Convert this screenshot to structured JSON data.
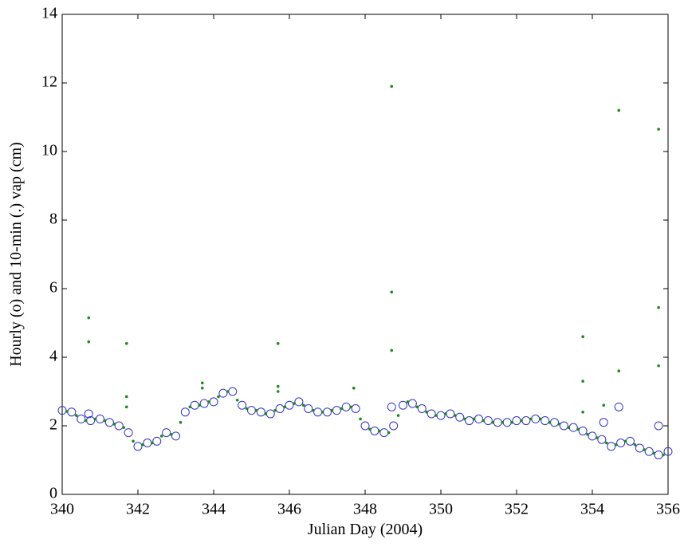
{
  "chart_data": {
    "type": "scatter",
    "x_label": "Julian Day (2004)",
    "y_label": "Hourly (o) and 10-min (.) vap (cm)",
    "xlim": [
      340,
      356
    ],
    "xticks": [
      340,
      342,
      344,
      346,
      348,
      350,
      352,
      354,
      356
    ],
    "ylim": [
      0,
      14
    ],
    "yticks": [
      0,
      2,
      4,
      6,
      8,
      10,
      12,
      14
    ],
    "grid": false,
    "series": [
      {
        "name": "Hourly",
        "color": "#3333cc",
        "marker": "circle",
        "x": [
          340,
          340.25,
          340.5,
          340.75,
          341,
          341.25,
          341.5,
          341.75,
          342,
          342.25,
          342.5,
          342.75,
          343,
          343.25,
          343.5,
          343.75,
          344,
          344.25,
          344.5,
          344.75,
          345,
          345.25,
          345.5,
          345.75,
          346,
          346.25,
          346.5,
          346.75,
          347,
          347.25,
          347.5,
          347.75,
          348,
          348.25,
          348.5,
          348.75,
          349,
          349.25,
          349.5,
          349.75,
          350,
          350.25,
          350.5,
          350.75,
          351,
          351.25,
          351.5,
          351.75,
          352,
          352.25,
          352.5,
          352.75,
          353,
          353.25,
          353.5,
          353.75,
          354,
          354.25,
          354.5,
          354.75,
          355,
          355.25,
          355.5,
          355.75,
          356,
          340.7,
          348.7,
          354.3,
          354.7,
          355.75
        ],
        "values": [
          2.45,
          2.4,
          2.2,
          2.15,
          2.2,
          2.1,
          2.0,
          1.8,
          1.4,
          1.5,
          1.55,
          1.8,
          1.7,
          2.4,
          2.6,
          2.65,
          2.7,
          2.95,
          3.0,
          2.6,
          2.45,
          2.4,
          2.35,
          2.5,
          2.6,
          2.7,
          2.5,
          2.4,
          2.4,
          2.45,
          2.55,
          2.5,
          2.0,
          1.85,
          1.8,
          2.0,
          2.6,
          2.65,
          2.5,
          2.35,
          2.3,
          2.35,
          2.25,
          2.15,
          2.2,
          2.15,
          2.1,
          2.1,
          2.15,
          2.15,
          2.2,
          2.15,
          2.1,
          2.0,
          1.95,
          1.85,
          1.7,
          1.6,
          1.4,
          1.5,
          1.55,
          1.35,
          1.25,
          1.15,
          1.25,
          2.35,
          2.55,
          2.1,
          2.55,
          2.0
        ]
      },
      {
        "name": "10-min",
        "color": "#1a8a1a",
        "marker": "dot",
        "x": [
          340.125,
          340.375,
          340.625,
          340.875,
          341.125,
          341.375,
          341.625,
          341.875,
          342.125,
          342.375,
          342.625,
          342.875,
          343.125,
          343.375,
          343.625,
          343.875,
          344.125,
          344.375,
          344.625,
          344.875,
          345.125,
          345.375,
          345.625,
          345.875,
          346.125,
          346.375,
          346.625,
          346.875,
          347.125,
          347.375,
          347.625,
          347.875,
          348.125,
          348.375,
          348.625,
          348.875,
          349.125,
          349.375,
          349.625,
          349.875,
          350.125,
          350.375,
          350.625,
          350.875,
          351.125,
          351.375,
          351.625,
          351.875,
          352.125,
          352.375,
          352.625,
          352.875,
          353.125,
          353.375,
          353.625,
          353.875,
          354.125,
          354.375,
          354.625,
          354.875,
          355.125,
          355.375,
          355.625,
          355.875,
          340.7,
          340.7,
          341.7,
          341.7,
          341.7,
          343.7,
          343.7,
          345.7,
          345.7,
          345.7,
          347.7,
          348.7,
          348.7,
          348.7,
          353.75,
          353.75,
          353.75,
          354.3,
          354.7,
          354.7,
          355.75,
          355.75,
          355.75
        ],
        "values": [
          2.42,
          2.3,
          2.15,
          2.2,
          2.15,
          2.05,
          1.95,
          1.55,
          1.45,
          1.5,
          1.7,
          1.75,
          2.1,
          2.55,
          2.6,
          2.7,
          2.85,
          3.0,
          2.75,
          2.5,
          2.45,
          2.35,
          2.45,
          2.55,
          2.65,
          2.6,
          2.45,
          2.4,
          2.45,
          2.5,
          2.55,
          2.2,
          1.9,
          1.85,
          1.8,
          2.3,
          2.7,
          2.55,
          2.4,
          2.3,
          2.35,
          2.3,
          2.2,
          2.2,
          2.15,
          2.1,
          2.1,
          2.1,
          2.15,
          2.2,
          2.2,
          2.1,
          2.05,
          1.95,
          1.9,
          1.75,
          1.65,
          1.5,
          1.45,
          1.55,
          1.45,
          1.3,
          1.2,
          1.15,
          5.15,
          4.45,
          4.4,
          2.85,
          2.55,
          3.25,
          3.1,
          4.4,
          3.15,
          3.0,
          3.1,
          11.9,
          5.9,
          4.2,
          4.6,
          3.3,
          2.4,
          2.6,
          11.2,
          3.6,
          10.65,
          5.45,
          3.75
        ]
      }
    ]
  }
}
